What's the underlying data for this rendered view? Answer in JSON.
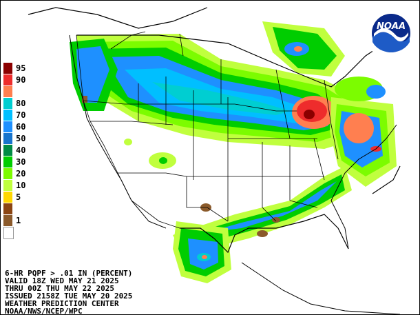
{
  "legend": {
    "items": [
      {
        "label": "95",
        "color": "#8b0000"
      },
      {
        "label": "90",
        "color": "#ee2c2c"
      },
      {
        "label": "",
        "color": "#ff7f50"
      },
      {
        "label": "80",
        "color": "#00ced1"
      },
      {
        "label": "70",
        "color": "#00bfff"
      },
      {
        "label": "60",
        "color": "#1e90ff"
      },
      {
        "label": "50",
        "color": "#1874cd"
      },
      {
        "label": "40",
        "color": "#008b45"
      },
      {
        "label": "30",
        "color": "#00cd00"
      },
      {
        "label": "20",
        "color": "#7cfc00"
      },
      {
        "label": "10",
        "color": "#c0ff3e"
      },
      {
        "label": "5",
        "color": "#ffd700"
      },
      {
        "label": "",
        "color": "#8b4513"
      },
      {
        "label": "1",
        "color": "#8b5a2b"
      },
      {
        "label": "",
        "color": "#ffffff"
      }
    ]
  },
  "info": {
    "line1": "6-HR PQPF > .01 IN (PERCENT)",
    "line2": "VALID 18Z WED MAY 21 2025",
    "line3": "THRU 00Z THU MAY 22 2025",
    "line4": "ISSUED 2158Z TUE MAY 20 2025",
    "line5": "WEATHER PREDICTION CENTER",
    "line6": "NOAA/NWS/NCEP/WPC"
  },
  "logo": {
    "text": "NOAA",
    "colors": {
      "ring": "#ffffff",
      "sea": "#1e5bc6",
      "sky": "#0a2a8a"
    }
  }
}
